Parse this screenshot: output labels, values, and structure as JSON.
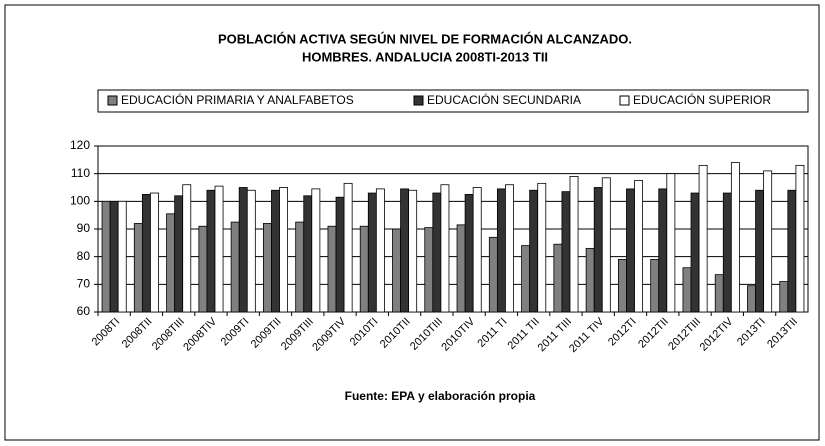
{
  "chart_data": {
    "type": "bar",
    "title_lines": [
      "POBLACIÓN  ACTIVA SEGÚN NIVEL DE FORMACIÓN ALCANZADO.",
      "HOMBRES. ANDALUCIA 2008TI-2013 TII"
    ],
    "source": "Fuente: EPA y elaboración propia",
    "categories": [
      "2008TI",
      "2008TII",
      "2008TIII",
      "2008TIV",
      "2009TI",
      "2009TII",
      "2009TIII",
      "2009TIV",
      "2010TI",
      "2010TII",
      "2010TIII",
      "2010TIV",
      "2011 TI",
      "2011 TII",
      "2011 TIII",
      "2011 TIV",
      "2012TI",
      "2012TII",
      "2012TIII",
      "2012TIV",
      "2013TI",
      "2013TII"
    ],
    "series": [
      {
        "name": "EDUCACIÓN PRIMARIA Y ANALFABETOS",
        "color": "#808080",
        "values": [
          100,
          92,
          95.5,
          91,
          92.5,
          92,
          92.5,
          91,
          91,
          90,
          90.5,
          91.5,
          87,
          84,
          84.5,
          83,
          79,
          79,
          76,
          73.5,
          69.5,
          71
        ]
      },
      {
        "name": "EDUCACIÓN SECUNDARIA",
        "color": "#333333",
        "values": [
          100,
          102.5,
          102,
          104,
          105,
          104,
          102,
          101.5,
          103,
          104.5,
          103,
          102.5,
          104.5,
          104,
          103.5,
          105,
          104.5,
          104.5,
          103,
          103,
          104,
          104
        ]
      },
      {
        "name": "EDUCACIÓN SUPERIOR",
        "color": "#ffffff",
        "values": [
          100,
          103,
          106,
          105.5,
          104,
          105,
          104.5,
          106.5,
          104.5,
          104,
          106,
          105,
          106,
          106.5,
          109,
          108.5,
          107.5,
          110,
          113,
          114,
          111,
          113
        ]
      }
    ],
    "ylim": [
      60,
      120
    ],
    "yticks": [
      60,
      70,
      80,
      90,
      100,
      110,
      120
    ],
    "grid": true
  }
}
